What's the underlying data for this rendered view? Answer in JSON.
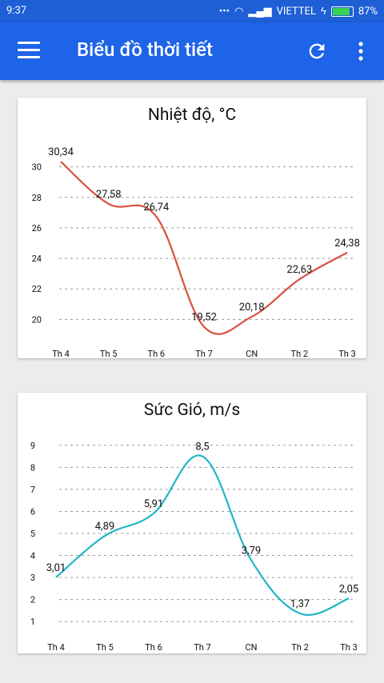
{
  "status": {
    "time": "9:37",
    "carrier": "VIETTEL",
    "battery": "87%",
    "battery_level": 0.87
  },
  "appbar": {
    "title": "Biểu đồ thời tiết",
    "menu_icon": "hamburger-menu-icon",
    "refresh_icon": "refresh-icon",
    "more_icon": "more-vertical-icon"
  },
  "chart_data": [
    {
      "type": "line",
      "title": "Nhiệt độ, °C",
      "categories": [
        "Th 4",
        "Th 5",
        "Th 6",
        "Th 7",
        "CN",
        "Th 2",
        "Th 3"
      ],
      "values": [
        30.34,
        27.58,
        26.74,
        19.52,
        20.18,
        22.63,
        24.38
      ],
      "value_labels": [
        "30,34",
        "27,58",
        "26,74",
        "19,52",
        "20,18",
        "22,63",
        "24,38"
      ],
      "yticks": [
        20,
        22,
        24,
        26,
        28,
        30
      ],
      "ylim": [
        18.5,
        31.5
      ],
      "color": "#d9503f",
      "grid": true
    },
    {
      "type": "line",
      "title": "Sức Gió, m/s",
      "categories": [
        "Th 4",
        "Th 5",
        "Th 6",
        "Th 7",
        "CN",
        "Th 2",
        "Th 3"
      ],
      "values": [
        3.01,
        4.89,
        5.91,
        8.5,
        3.79,
        1.37,
        2.05
      ],
      "value_labels": [
        "3,01",
        "4,89",
        "5,91",
        "8,5",
        "3,79",
        "1,37",
        "2,05"
      ],
      "yticks": [
        1,
        2,
        3,
        4,
        5,
        6,
        7,
        8,
        9
      ],
      "ylim": [
        0.5,
        9.5
      ],
      "color": "#1fb5c8",
      "grid": true
    }
  ]
}
